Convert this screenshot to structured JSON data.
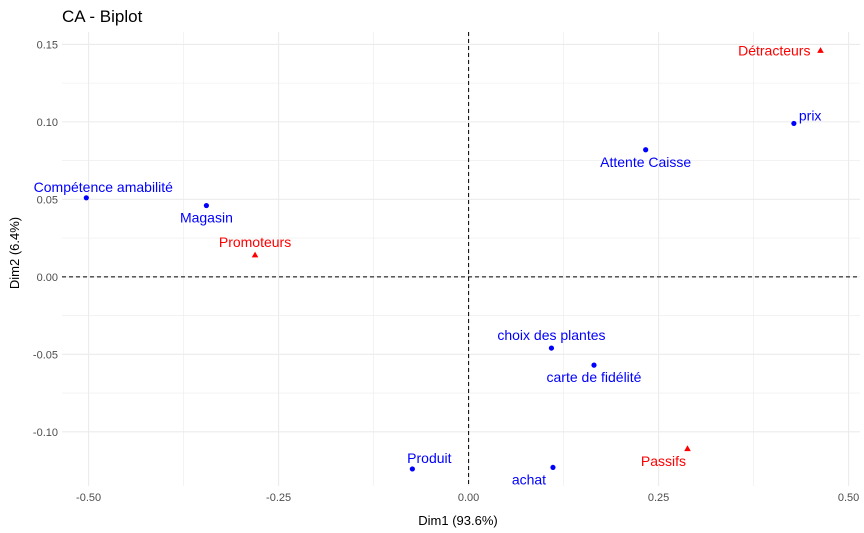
{
  "chart_data": {
    "type": "scatter",
    "title": "CA - Biplot",
    "xlabel": "Dim1 (93.6%)",
    "ylabel": "Dim2 (6.4%)",
    "xlim": [
      -0.535,
      0.515
    ],
    "ylim": [
      -0.135,
      0.158
    ],
    "x_ticks": [
      -0.5,
      -0.25,
      0.0,
      0.25,
      0.5
    ],
    "x_tick_labels": [
      "-0.50",
      "-0.25",
      "0.00",
      "0.25",
      "0.50"
    ],
    "y_ticks": [
      -0.1,
      -0.05,
      0.0,
      0.05,
      0.1,
      0.15
    ],
    "y_tick_labels": [
      "-0.10",
      "-0.05",
      "0.00",
      "0.05",
      "0.10",
      "0.15"
    ],
    "grid": true,
    "reference_lines": {
      "x": 0,
      "y": 0,
      "style": "dashed"
    },
    "colors": {
      "column_points": "#0000ff",
      "row_points": "#ff0000",
      "grid": "#ebebeb",
      "ref_line": "#000000"
    },
    "series": [
      {
        "marker": "circle",
        "color": "#0000ff",
        "points": [
          {
            "label": "prix",
            "x": 0.428,
            "y": 0.099,
            "label_pos": "right-above"
          },
          {
            "label": "Attente Caisse",
            "x": 0.233,
            "y": 0.082,
            "label_pos": "below"
          },
          {
            "label": "Compétence amabilité",
            "x": -0.503,
            "y": 0.051,
            "label_pos": "above-right"
          },
          {
            "label": "Magasin",
            "x": -0.345,
            "y": 0.046,
            "label_pos": "below"
          },
          {
            "label": "choix des plantes",
            "x": 0.109,
            "y": -0.046,
            "label_pos": "above"
          },
          {
            "label": "carte de fidélité",
            "x": 0.165,
            "y": -0.057,
            "label_pos": "below"
          },
          {
            "label": "Produit",
            "x": -0.074,
            "y": -0.124,
            "label_pos": "above-right"
          },
          {
            "label": "achat",
            "x": 0.111,
            "y": -0.123,
            "label_pos": "below-left"
          }
        ]
      },
      {
        "marker": "triangle",
        "color": "#ff0000",
        "points": [
          {
            "label": "Détracteurs",
            "x": 0.463,
            "y": 0.146,
            "label_pos": "left"
          },
          {
            "label": "Promoteurs",
            "x": -0.281,
            "y": 0.014,
            "label_pos": "above"
          },
          {
            "label": "Passifs",
            "x": 0.288,
            "y": -0.111,
            "label_pos": "below-left"
          }
        ]
      }
    ]
  }
}
